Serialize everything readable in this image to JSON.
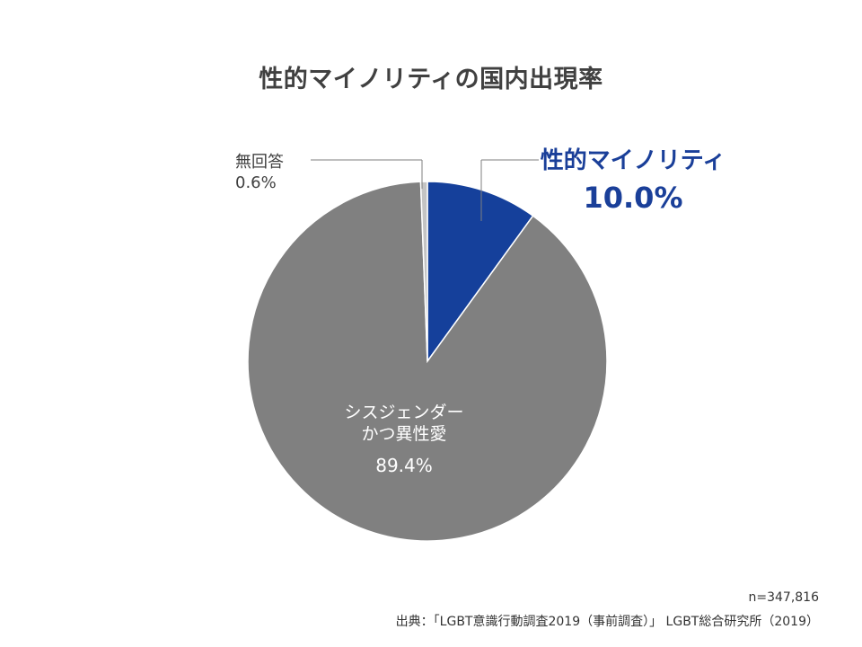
{
  "title": "性的マイノリティの国内出現率",
  "chart_data": {
    "type": "pie",
    "slices": [
      {
        "label": "性的マイノリティ",
        "value": 10.0,
        "value_label": "10.0%",
        "color": "#15409b"
      },
      {
        "label_lines": [
          "シスジェンダー",
          "かつ異性愛"
        ],
        "value": 89.4,
        "value_label": "89.4%",
        "color": "#808080"
      },
      {
        "label": "無回答",
        "value": 0.6,
        "value_label": "0.6%",
        "color": "#c4c4c4"
      }
    ]
  },
  "notes": {
    "sample": "n=347,816",
    "source": "出典：「LGBT意識行動調査2019（事前調査）」 LGBT総合研究所（2019）"
  }
}
